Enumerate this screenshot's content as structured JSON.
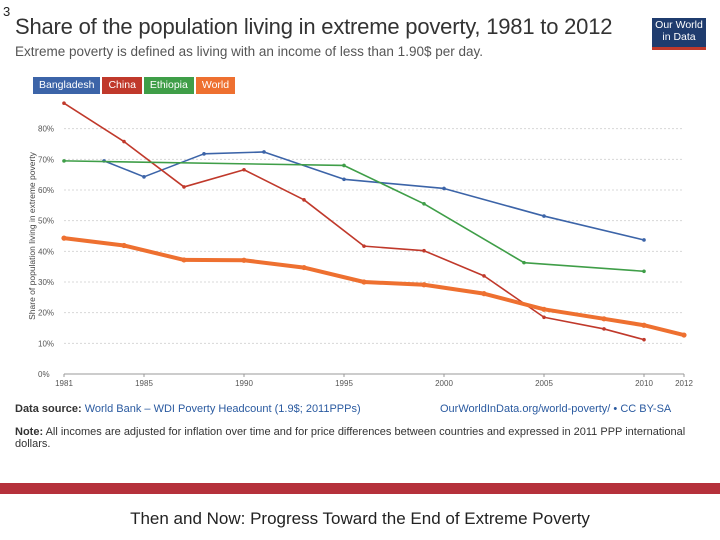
{
  "slide_number": "3",
  "header": {
    "title": "Share of the population living in extreme poverty, 1981 to 2012",
    "subtitle": "Extreme poverty is defined as living with an income of less than 1.90$ per day.",
    "logo_line1": "Our World",
    "logo_line2": "in Data"
  },
  "legend": [
    {
      "label": "Bangladesh",
      "color": "#3c64a8"
    },
    {
      "label": "China",
      "color": "#c0392b"
    },
    {
      "label": "Ethiopia",
      "color": "#3f9e48"
    },
    {
      "label": "World",
      "color": "#ee7030"
    }
  ],
  "chart_data": {
    "type": "line",
    "title": "Share of the population living in extreme poverty, 1981 to 2012",
    "xlabel": "",
    "ylabel": "Share of population living in extreme poverty",
    "xlim": [
      1981,
      2012
    ],
    "ylim": [
      0,
      90
    ],
    "x_ticks": [
      "1981",
      "1985",
      "1990",
      "1995",
      "2000",
      "2005",
      "2010",
      "2012"
    ],
    "y_ticks": [
      "0%",
      "10%",
      "20%",
      "30%",
      "40%",
      "50%",
      "60%",
      "70%",
      "80%"
    ],
    "series": [
      {
        "name": "Bangladesh",
        "color": "#3c64a8",
        "x": [
          1983,
          1985,
          1988,
          1991,
          1995,
          2000,
          2005,
          2010
        ],
        "y": [
          69.5,
          64.3,
          71.8,
          72.4,
          63.5,
          60.5,
          51.5,
          43.7
        ]
      },
      {
        "name": "China",
        "color": "#c0392b",
        "x": [
          1981,
          1984,
          1987,
          1990,
          1993,
          1996,
          1999,
          2002,
          2005,
          2008,
          2010
        ],
        "y": [
          88.3,
          75.8,
          61.0,
          66.6,
          56.8,
          41.7,
          40.2,
          32.0,
          18.5,
          14.7,
          11.2
        ]
      },
      {
        "name": "Ethiopia",
        "color": "#3f9e48",
        "x": [
          1981,
          1995,
          1999,
          2004,
          2010
        ],
        "y": [
          69.5,
          68.0,
          55.5,
          36.3,
          33.5
        ]
      },
      {
        "name": "World",
        "color": "#ee7030",
        "x": [
          1981,
          1984,
          1987,
          1990,
          1993,
          1996,
          1999,
          2002,
          2005,
          2008,
          2010,
          2012
        ],
        "y": [
          44.3,
          41.9,
          37.2,
          37.1,
          34.7,
          30.0,
          29.1,
          26.2,
          21.1,
          18.0,
          15.9,
          12.7
        ]
      }
    ]
  },
  "footer": {
    "source_label": "Data source:",
    "source_text": "World Bank – WDI Poverty Headcount (1.9$; 2011PPPs)",
    "source_right": "OurWorldInData.org/world-poverty/ • CC BY-SA",
    "note_label": "Note:",
    "note_text": "All incomes are adjusted for inflation over time and for price differences between countries and expressed in 2011 PPP international dollars."
  },
  "caption": "Then and Now: Progress Toward the End of Extreme Poverty"
}
